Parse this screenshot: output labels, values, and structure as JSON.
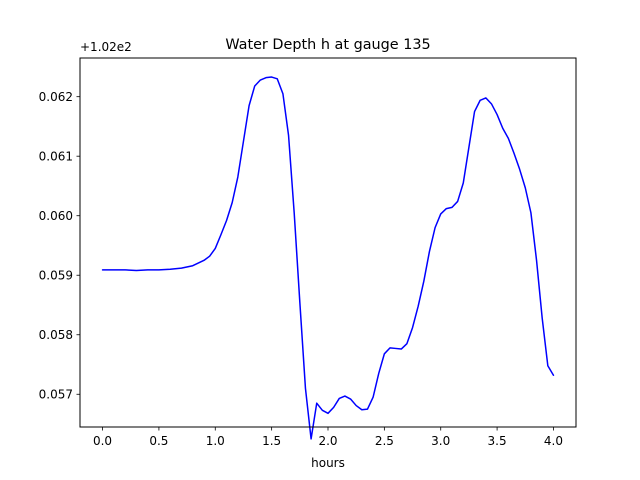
{
  "chart_data": {
    "type": "line",
    "title": "Water Depth h at gauge 135",
    "xlabel": "hours",
    "ylabel": "",
    "y_offset_label": "+1.02e2",
    "xlim": [
      -0.2,
      4.2
    ],
    "ylim": [
      0.05645,
      0.06265
    ],
    "x_ticks": [
      0.0,
      0.5,
      1.0,
      1.5,
      2.0,
      2.5,
      3.0,
      3.5,
      4.0
    ],
    "x_tick_labels": [
      "0.0",
      "0.5",
      "1.0",
      "1.5",
      "2.0",
      "2.5",
      "3.0",
      "3.5",
      "4.0"
    ],
    "y_ticks": [
      0.057,
      0.058,
      0.059,
      0.06,
      0.061,
      0.062
    ],
    "y_tick_labels": [
      "0.057",
      "0.058",
      "0.059",
      "0.060",
      "0.061",
      "0.062"
    ],
    "grid": false,
    "line_color": "#0000ff",
    "series": [
      {
        "x": [
          0.0,
          0.1,
          0.2,
          0.3,
          0.4,
          0.5,
          0.6,
          0.7,
          0.8,
          0.9,
          0.95,
          1.0,
          1.05,
          1.1,
          1.15,
          1.2,
          1.25,
          1.3,
          1.35,
          1.4,
          1.45,
          1.5,
          1.55,
          1.6,
          1.65,
          1.7,
          1.75,
          1.8,
          1.85,
          1.9,
          1.95,
          2.0,
          2.05,
          2.1,
          2.15,
          2.2,
          2.25,
          2.3,
          2.35,
          2.4,
          2.45,
          2.5,
          2.55,
          2.6,
          2.65,
          2.7,
          2.75,
          2.8,
          2.85,
          2.9,
          2.95,
          3.0,
          3.05,
          3.1,
          3.15,
          3.2,
          3.25,
          3.3,
          3.35,
          3.4,
          3.45,
          3.5,
          3.55,
          3.6,
          3.65,
          3.7,
          3.75,
          3.8,
          3.85,
          3.9,
          3.95,
          4.0
        ],
        "y": [
          0.05909,
          0.05909,
          0.05909,
          0.05908,
          0.05909,
          0.05909,
          0.0591,
          0.05912,
          0.05916,
          0.05925,
          0.05932,
          0.05945,
          0.05968,
          0.05992,
          0.06022,
          0.06065,
          0.06125,
          0.06185,
          0.06218,
          0.06228,
          0.06232,
          0.06233,
          0.0623,
          0.06205,
          0.06135,
          0.06005,
          0.05855,
          0.0571,
          0.05625,
          0.05685,
          0.05673,
          0.05668,
          0.05678,
          0.05693,
          0.05697,
          0.05692,
          0.05681,
          0.05674,
          0.05675,
          0.05695,
          0.05735,
          0.05768,
          0.05778,
          0.05777,
          0.05776,
          0.05785,
          0.05812,
          0.05848,
          0.0589,
          0.0594,
          0.0598,
          0.06003,
          0.06012,
          0.06014,
          0.06024,
          0.06055,
          0.06115,
          0.06175,
          0.06194,
          0.06198,
          0.06188,
          0.0617,
          0.06147,
          0.0613,
          0.06105,
          0.06078,
          0.06047,
          0.06005,
          0.05925,
          0.05828,
          0.05748,
          0.05732
        ]
      }
    ]
  }
}
